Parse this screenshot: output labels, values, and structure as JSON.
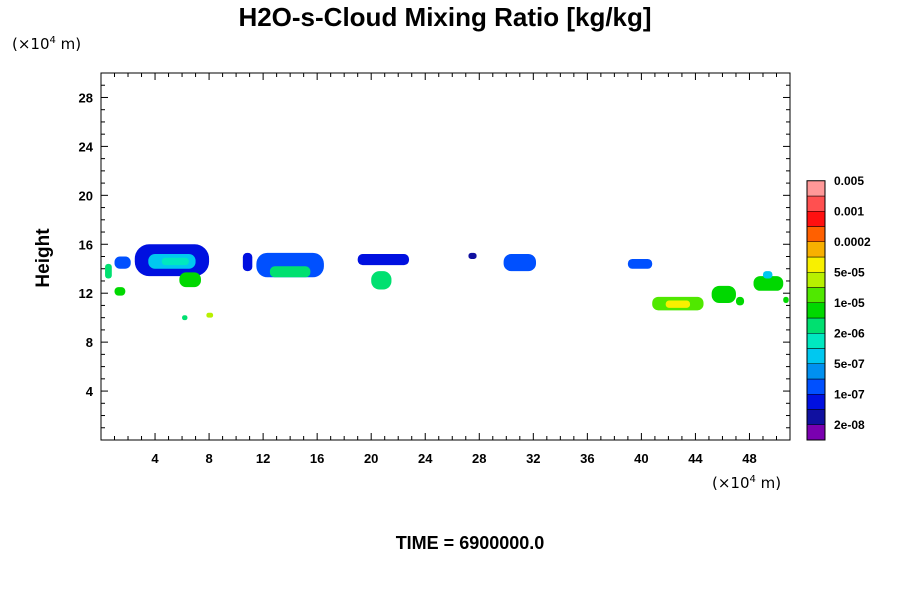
{
  "chart_data": {
    "type": "heatmap",
    "title": "H2O-s-Cloud Mixing Ratio [kg/kg]",
    "x_unit": "(×10",
    "x_unit_exp": "4",
    "x_unit_tail": " m)",
    "y_unit": "(×10",
    "y_unit_exp": "4",
    "y_unit_tail": " m)",
    "ylabel": "Height",
    "xlim": [
      0,
      51
    ],
    "ylim": [
      0,
      30
    ],
    "x_ticks": [
      4,
      8,
      12,
      16,
      20,
      24,
      28,
      32,
      36,
      40,
      44,
      48
    ],
    "y_ticks": [
      4,
      8,
      12,
      16,
      20,
      24,
      28
    ],
    "footer": "TIME = 6900000.0",
    "colorbar": {
      "colors": [
        "#7a00b0",
        "#1010a0",
        "#0010e0",
        "#0050ff",
        "#0090f0",
        "#00c8f0",
        "#00e8c0",
        "#00e070",
        "#00d800",
        "#50e800",
        "#b8f000",
        "#f8f000",
        "#f8b000",
        "#ff6000",
        "#ff1010",
        "#ff5050",
        "#ff9898"
      ],
      "labels": [
        "2e-08",
        "1e-07",
        "5e-07",
        "2e-06",
        "1e-05",
        "5e-05",
        "0.0002",
        "0.001",
        "0.005"
      ]
    },
    "cloud_cells": [
      {
        "x": 0.3,
        "y": 13.2,
        "w": 0.5,
        "h": 1.2,
        "level": 7
      },
      {
        "x": 1.0,
        "y": 14.0,
        "w": 1.2,
        "h": 1.0,
        "level": 3
      },
      {
        "x": 2.5,
        "y": 13.4,
        "w": 5.5,
        "h": 2.6,
        "level": 2
      },
      {
        "x": 3.5,
        "y": 14.0,
        "w": 3.5,
        "h": 1.2,
        "level": 5
      },
      {
        "x": 4.5,
        "y": 14.3,
        "w": 2.0,
        "h": 0.6,
        "level": 6
      },
      {
        "x": 5.8,
        "y": 12.5,
        "w": 1.6,
        "h": 1.2,
        "level": 8
      },
      {
        "x": 1.0,
        "y": 11.8,
        "w": 0.8,
        "h": 0.7,
        "level": 8
      },
      {
        "x": 6.0,
        "y": 9.8,
        "w": 0.4,
        "h": 0.4,
        "level": 7
      },
      {
        "x": 7.8,
        "y": 10.0,
        "w": 0.5,
        "h": 0.4,
        "level": 10
      },
      {
        "x": 10.5,
        "y": 13.8,
        "w": 0.7,
        "h": 1.5,
        "level": 2
      },
      {
        "x": 11.5,
        "y": 13.3,
        "w": 5.0,
        "h": 2.0,
        "level": 3
      },
      {
        "x": 12.5,
        "y": 13.3,
        "w": 3.0,
        "h": 0.9,
        "level": 7
      },
      {
        "x": 19.0,
        "y": 14.3,
        "w": 3.8,
        "h": 0.9,
        "level": 2
      },
      {
        "x": 20.0,
        "y": 12.3,
        "w": 1.5,
        "h": 1.5,
        "level": 7
      },
      {
        "x": 27.2,
        "y": 14.8,
        "w": 0.6,
        "h": 0.5,
        "level": 1
      },
      {
        "x": 29.8,
        "y": 13.8,
        "w": 2.4,
        "h": 1.4,
        "level": 3
      },
      {
        "x": 39.0,
        "y": 14.0,
        "w": 1.8,
        "h": 0.8,
        "level": 3
      },
      {
        "x": 40.8,
        "y": 10.6,
        "w": 3.8,
        "h": 1.1,
        "level": 9
      },
      {
        "x": 41.8,
        "y": 10.8,
        "w": 1.8,
        "h": 0.6,
        "level": 11
      },
      {
        "x": 45.2,
        "y": 11.2,
        "w": 1.8,
        "h": 1.4,
        "level": 8
      },
      {
        "x": 47.0,
        "y": 11.0,
        "w": 0.6,
        "h": 0.7,
        "level": 8
      },
      {
        "x": 48.3,
        "y": 12.2,
        "w": 2.2,
        "h": 1.2,
        "level": 8
      },
      {
        "x": 49.0,
        "y": 13.2,
        "w": 0.7,
        "h": 0.6,
        "level": 5
      },
      {
        "x": 50.5,
        "y": 11.2,
        "w": 0.4,
        "h": 0.5,
        "level": 8
      }
    ]
  }
}
